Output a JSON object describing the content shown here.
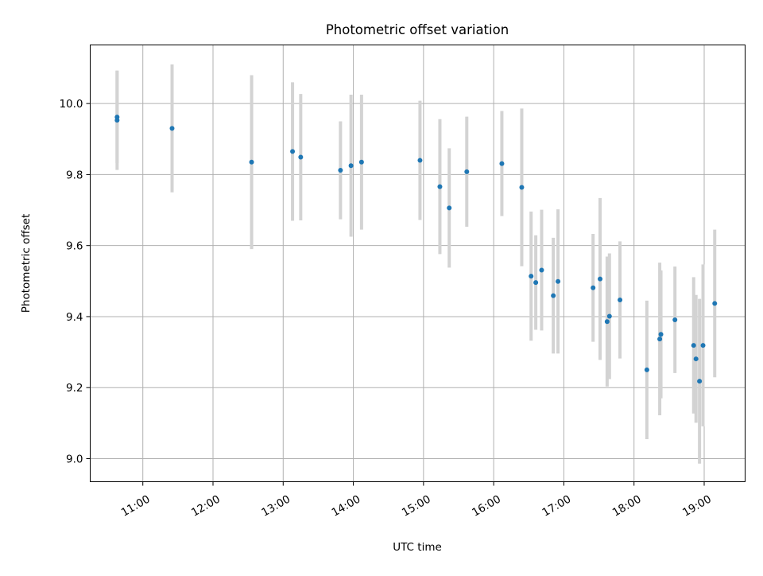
{
  "chart_data": {
    "type": "scatter",
    "title": "Photometric offset variation",
    "xlabel": "UTC time",
    "ylabel": "Photometric offset",
    "x_tick_labels": [
      "11:00",
      "12:00",
      "13:00",
      "14:00",
      "15:00",
      "16:00",
      "17:00",
      "18:00",
      "19:00"
    ],
    "y_tick_labels": [
      "9.0",
      "9.2",
      "9.4",
      "9.6",
      "9.8",
      "10.0"
    ],
    "xlim": [
      "10:15",
      "19:35"
    ],
    "ylim": [
      8.935,
      10.165
    ],
    "grid": true,
    "colors": {
      "point": "#1f77b4",
      "errorbar": "#d3d3d3",
      "grid": "#b0b0b0"
    },
    "points": [
      {
        "x": "10:38",
        "y": 9.962,
        "err": 0.13
      },
      {
        "x": "10:38",
        "y": 9.953,
        "err": 0.14
      },
      {
        "x": "11:25",
        "y": 9.93,
        "err": 0.18
      },
      {
        "x": "12:33",
        "y": 9.835,
        "err": 0.245
      },
      {
        "x": "13:08",
        "y": 9.865,
        "err": 0.195
      },
      {
        "x": "13:15",
        "y": 9.849,
        "err": 0.178
      },
      {
        "x": "13:49",
        "y": 9.812,
        "err": 0.138
      },
      {
        "x": "13:58",
        "y": 9.825,
        "err": 0.2
      },
      {
        "x": "14:07",
        "y": 9.835,
        "err": 0.19
      },
      {
        "x": "14:57",
        "y": 9.84,
        "err": 0.168
      },
      {
        "x": "15:14",
        "y": 9.766,
        "err": 0.19
      },
      {
        "x": "15:22",
        "y": 9.706,
        "err": 0.168
      },
      {
        "x": "15:37",
        "y": 9.808,
        "err": 0.155
      },
      {
        "x": "16:07",
        "y": 9.831,
        "err": 0.148
      },
      {
        "x": "16:24",
        "y": 9.764,
        "err": 0.222
      },
      {
        "x": "16:32",
        "y": 9.514,
        "err": 0.182
      },
      {
        "x": "16:36",
        "y": 9.496,
        "err": 0.133
      },
      {
        "x": "16:41",
        "y": 9.531,
        "err": 0.17
      },
      {
        "x": "16:51",
        "y": 9.459,
        "err": 0.163
      },
      {
        "x": "16:55",
        "y": 9.499,
        "err": 0.203
      },
      {
        "x": "17:25",
        "y": 9.481,
        "err": 0.152
      },
      {
        "x": "17:31",
        "y": 9.506,
        "err": 0.228
      },
      {
        "x": "17:37",
        "y": 9.386,
        "err": 0.183
      },
      {
        "x": "17:39",
        "y": 9.401,
        "err": 0.177
      },
      {
        "x": "17:48",
        "y": 9.447,
        "err": 0.165
      },
      {
        "x": "18:11",
        "y": 9.25,
        "err": 0.195
      },
      {
        "x": "18:22",
        "y": 9.337,
        "err": 0.215
      },
      {
        "x": "18:23",
        "y": 9.35,
        "err": 0.18
      },
      {
        "x": "18:35",
        "y": 9.391,
        "err": 0.15
      },
      {
        "x": "18:51",
        "y": 9.319,
        "err": 0.192
      },
      {
        "x": "18:53",
        "y": 9.281,
        "err": 0.18
      },
      {
        "x": "18:56",
        "y": 9.218,
        "err": 0.232
      },
      {
        "x": "18:59",
        "y": 9.319,
        "err": 0.228
      },
      {
        "x": "19:09",
        "y": 9.437,
        "err": 0.208
      }
    ]
  }
}
